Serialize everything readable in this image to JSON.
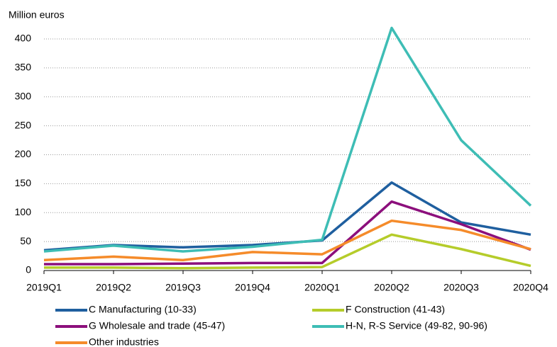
{
  "chart_data": {
    "type": "line",
    "y_label": "Million euros",
    "categories": [
      "2019Q1",
      "2019Q2",
      "2019Q3",
      "2019Q4",
      "2020Q1",
      "2020Q2",
      "2020Q3",
      "2020Q4"
    ],
    "series": [
      {
        "name": "C Manufacturing (10-33)",
        "color": "#1f5f9f",
        "values": [
          35,
          44,
          40,
          44,
          52,
          152,
          83,
          62
        ]
      },
      {
        "name": "F Construction (41-43)",
        "color": "#b5cc2a",
        "values": [
          5,
          5,
          4,
          5,
          6,
          62,
          37,
          8
        ]
      },
      {
        "name": "G Wholesale and trade (45-47)",
        "color": "#8c0f7c",
        "values": [
          11,
          11,
          12,
          13,
          13,
          119,
          80,
          36
        ]
      },
      {
        "name": "H-N, R-S Service (49-82, 90-96)",
        "color": "#3ebdb5",
        "values": [
          33,
          43,
          33,
          41,
          53,
          419,
          225,
          112
        ]
      },
      {
        "name": "Other industries",
        "color": "#f58b2a",
        "values": [
          18,
          24,
          18,
          32,
          28,
          86,
          70,
          37
        ]
      }
    ],
    "ylim": [
      0,
      400
    ],
    "yticks": [
      0,
      50,
      100,
      150,
      200,
      250,
      300,
      350,
      400
    ],
    "grid": true
  }
}
